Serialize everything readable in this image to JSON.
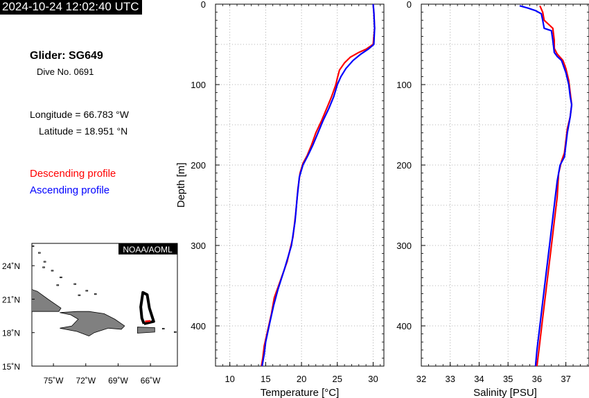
{
  "timestamp": "2024-10-24 12:02:40 UTC",
  "glider": {
    "title": "Glider: SG649",
    "dive": "Dive No. 0691",
    "longitude": "Longitude = 66.783 °W",
    "latitude": "Latitude = 18.951 °N"
  },
  "legend": {
    "descending": "Descending profile",
    "ascending": "Ascending profile",
    "descending_color": "#ff0000",
    "ascending_color": "#0000ff"
  },
  "map": {
    "badge": "NOAA/AOML",
    "lat_labels": [
      "24˚N",
      "21˚N",
      "18˚N",
      "15˚N"
    ],
    "lon_labels": [
      "75˚W",
      "72˚W",
      "69˚W",
      "66˚W"
    ],
    "lon_range": [
      -77,
      -63.5
    ],
    "lat_range": [
      15,
      26
    ]
  },
  "chart_data": [
    {
      "type": "line",
      "xlabel": "Temperature [°C]",
      "ylabel": "Depth [m]",
      "xlim": [
        8,
        31.5
      ],
      "ylim": [
        0,
        450
      ],
      "y_inverted": true,
      "xticks": [
        10,
        15,
        20,
        25,
        30
      ],
      "yticks": [
        0,
        100,
        200,
        300,
        400
      ],
      "grid": true,
      "series": [
        {
          "name": "Descending profile",
          "points": [
            [
              30.0,
              0
            ],
            [
              30.1,
              10
            ],
            [
              30.2,
              30
            ],
            [
              30.0,
              50
            ],
            [
              29.0,
              56
            ],
            [
              28.0,
              60
            ],
            [
              26.8,
              66
            ],
            [
              26.0,
              73
            ],
            [
              25.3,
              82
            ],
            [
              25.0,
              92
            ],
            [
              24.8,
              100
            ],
            [
              24.2,
              115
            ],
            [
              23.5,
              130
            ],
            [
              22.8,
              145
            ],
            [
              22.0,
              160
            ],
            [
              21.4,
              175
            ],
            [
              20.8,
              188
            ],
            [
              20.2,
              198
            ],
            [
              19.8,
              210
            ],
            [
              19.5,
              230
            ],
            [
              19.2,
              260
            ],
            [
              18.8,
              290
            ],
            [
              18.0,
              320
            ],
            [
              17.0,
              345
            ],
            [
              16.2,
              365
            ],
            [
              15.8,
              385
            ],
            [
              15.3,
              405
            ],
            [
              14.8,
              425
            ],
            [
              14.6,
              440
            ],
            [
              14.4,
              450
            ]
          ]
        },
        {
          "name": "Ascending profile",
          "points": [
            [
              30.0,
              0
            ],
            [
              30.1,
              10
            ],
            [
              30.2,
              30
            ],
            [
              30.1,
              50
            ],
            [
              29.3,
              56
            ],
            [
              28.3,
              62
            ],
            [
              27.2,
              70
            ],
            [
              26.2,
              80
            ],
            [
              25.5,
              90
            ],
            [
              25.0,
              100
            ],
            [
              24.5,
              115
            ],
            [
              23.8,
              130
            ],
            [
              23.0,
              145
            ],
            [
              22.3,
              160
            ],
            [
              21.6,
              175
            ],
            [
              20.9,
              188
            ],
            [
              20.2,
              200
            ],
            [
              19.7,
              215
            ],
            [
              19.4,
              240
            ],
            [
              19.1,
              270
            ],
            [
              18.6,
              300
            ],
            [
              17.6,
              330
            ],
            [
              16.7,
              355
            ],
            [
              16.1,
              375
            ],
            [
              15.6,
              395
            ],
            [
              15.0,
              420
            ],
            [
              14.8,
              435
            ],
            [
              14.5,
              450
            ]
          ]
        }
      ]
    },
    {
      "type": "line",
      "xlabel": "Salinity [PSU]",
      "ylabel": "",
      "xlim": [
        32,
        37.8
      ],
      "ylim": [
        0,
        450
      ],
      "y_inverted": true,
      "xticks": [
        32,
        33,
        34,
        35,
        36,
        37
      ],
      "yticks": [
        0,
        100,
        200,
        300,
        400
      ],
      "grid": true,
      "series": [
        {
          "name": "Descending profile",
          "points": [
            [
              36.1,
              2
            ],
            [
              36.2,
              10
            ],
            [
              36.25,
              20
            ],
            [
              36.4,
              25
            ],
            [
              36.55,
              30
            ],
            [
              36.6,
              45
            ],
            [
              36.6,
              55
            ],
            [
              36.7,
              62
            ],
            [
              36.9,
              70
            ],
            [
              37.0,
              80
            ],
            [
              37.1,
              95
            ],
            [
              37.15,
              110
            ],
            [
              37.2,
              125
            ],
            [
              37.15,
              140
            ],
            [
              37.05,
              155
            ],
            [
              37.0,
              170
            ],
            [
              36.95,
              185
            ],
            [
              36.85,
              195
            ],
            [
              36.75,
              210
            ],
            [
              36.7,
              240
            ],
            [
              36.6,
              270
            ],
            [
              36.5,
              300
            ],
            [
              36.4,
              330
            ],
            [
              36.3,
              360
            ],
            [
              36.2,
              390
            ],
            [
              36.1,
              420
            ],
            [
              36.0,
              450
            ]
          ]
        },
        {
          "name": "Ascending profile",
          "points": [
            [
              35.4,
              2
            ],
            [
              35.7,
              5
            ],
            [
              35.95,
              8
            ],
            [
              36.15,
              12
            ],
            [
              36.2,
              20
            ],
            [
              36.25,
              30
            ],
            [
              36.5,
              33
            ],
            [
              36.55,
              45
            ],
            [
              36.6,
              60
            ],
            [
              36.7,
              65
            ],
            [
              36.85,
              70
            ],
            [
              37.0,
              85
            ],
            [
              37.1,
              100
            ],
            [
              37.15,
              115
            ],
            [
              37.2,
              125
            ],
            [
              37.15,
              140
            ],
            [
              37.05,
              160
            ],
            [
              37.0,
              175
            ],
            [
              36.95,
              190
            ],
            [
              36.8,
              200
            ],
            [
              36.7,
              220
            ],
            [
              36.6,
              250
            ],
            [
              36.5,
              280
            ],
            [
              36.4,
              310
            ],
            [
              36.3,
              340
            ],
            [
              36.2,
              370
            ],
            [
              36.1,
              400
            ],
            [
              36.0,
              430
            ],
            [
              35.95,
              450
            ]
          ]
        }
      ]
    }
  ]
}
